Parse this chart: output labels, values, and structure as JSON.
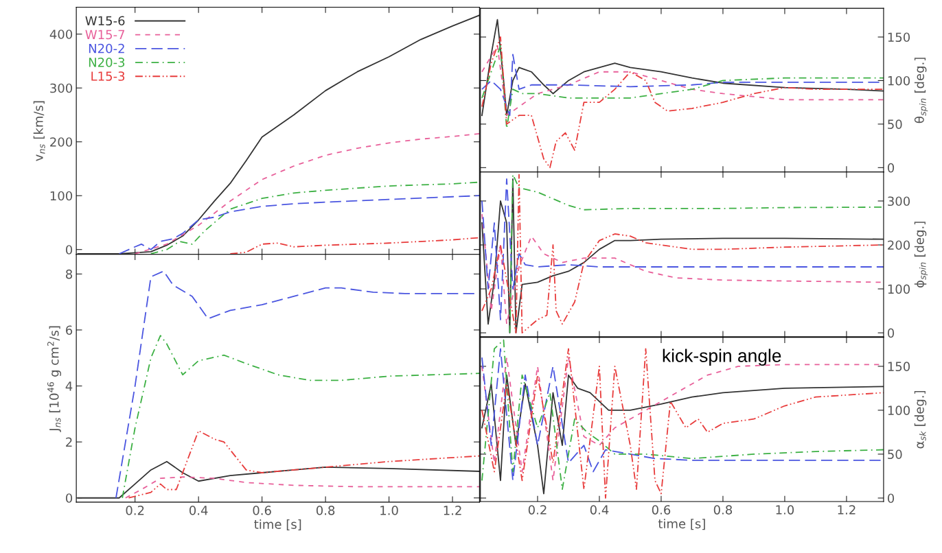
{
  "chart_data": [
    {
      "type": "line",
      "ylabel": "v$_{ns}$ [km/s]",
      "xlim": [
        0.015,
        1.285
      ],
      "xticks": [
        0.2,
        0.4,
        0.6,
        0.8,
        1.0,
        1.2
      ],
      "ylim": [
        -9,
        450
      ],
      "yticks": [
        0,
        100,
        200,
        300,
        400
      ],
      "tick_labels": "y",
      "legend": "top left",
      "series": [
        {
          "name": "W15-6",
          "color": "#333333",
          "line_style": "solid",
          "x": [
            0.02,
            0.15,
            0.2,
            0.25,
            0.3,
            0.35,
            0.4,
            0.45,
            0.5,
            0.55,
            0.6,
            0.7,
            0.8,
            0.9,
            1.0,
            1.1,
            1.2,
            1.285
          ],
          "values": [
            -8,
            -8,
            -6,
            -4,
            8,
            25,
            55,
            90,
            123,
            165,
            209,
            250,
            295,
            330,
            358,
            390,
            415,
            435
          ]
        },
        {
          "name": "W15-7",
          "color": "#e8609a",
          "line_style": "dashed",
          "x": [
            0.2,
            0.3,
            0.4,
            0.5,
            0.6,
            0.7,
            0.8,
            0.9,
            1.0,
            1.1,
            1.2,
            1.285
          ],
          "values": [
            -8,
            10,
            45,
            90,
            130,
            155,
            175,
            188,
            198,
            205,
            210,
            215
          ]
        },
        {
          "name": "N20-2",
          "color": "#4a55e0",
          "line_style": "longdash",
          "x": [
            0.15,
            0.2,
            0.22,
            0.25,
            0.28,
            0.32,
            0.35,
            0.4,
            0.45,
            0.5,
            0.6,
            0.7,
            0.8,
            1.0,
            1.2,
            1.285
          ],
          "values": [
            -8,
            5,
            10,
            0,
            15,
            20,
            30,
            55,
            60,
            70,
            80,
            85,
            88,
            93,
            98,
            100
          ]
        },
        {
          "name": "N20-3",
          "color": "#3cb043",
          "line_style": "dashdot",
          "x": [
            0.25,
            0.3,
            0.34,
            0.38,
            0.42,
            0.5,
            0.6,
            0.7,
            0.8,
            1.0,
            1.2,
            1.285
          ],
          "values": [
            -8,
            0,
            15,
            10,
            35,
            75,
            95,
            105,
            110,
            118,
            122,
            125
          ]
        },
        {
          "name": "L15-3",
          "color": "#e83c3c",
          "line_style": "dashdotdot",
          "x": [
            0.5,
            0.55,
            0.6,
            0.65,
            0.7,
            0.8,
            1.0,
            1.2,
            1.285
          ],
          "values": [
            -8,
            -5,
            10,
            12,
            5,
            8,
            12,
            18,
            22
          ]
        }
      ]
    },
    {
      "type": "line",
      "xlabel": "time [s]",
      "ylabel": "J$_{ns}$ [10$^{46}$ g cm$^{2}$/s]",
      "xlim": [
        0.015,
        1.285
      ],
      "xticks": [
        0.2,
        0.4,
        0.6,
        0.8,
        {
          "value": 1.0,
          "label": "1.0"
        },
        1.2
      ],
      "ylim": [
        -0.15,
        8.7
      ],
      "yticks": [
        0,
        2,
        4,
        6,
        8
      ],
      "series": [
        {
          "color": "#333333",
          "line_style": "solid",
          "x": [
            0.02,
            0.15,
            0.2,
            0.25,
            0.3,
            0.35,
            0.4,
            0.5,
            0.6,
            0.7,
            0.8,
            1.0,
            1.285
          ],
          "values": [
            0,
            0,
            0.5,
            1.0,
            1.3,
            0.9,
            0.6,
            0.8,
            0.9,
            1.0,
            1.1,
            1.05,
            0.95
          ]
        },
        {
          "color": "#e8609a",
          "line_style": "dashed",
          "x": [
            0.17,
            0.22,
            0.28,
            0.35,
            0.45,
            0.55,
            0.7,
            0.9,
            1.285
          ],
          "values": [
            0,
            0.3,
            0.7,
            0.75,
            0.7,
            0.55,
            0.45,
            0.4,
            0.4
          ]
        },
        {
          "color": "#4a55e0",
          "line_style": "longdash",
          "x": [
            0.14,
            0.2,
            0.25,
            0.29,
            0.32,
            0.38,
            0.43,
            0.5,
            0.6,
            0.7,
            0.8,
            0.85,
            0.95,
            1.05,
            1.285
          ],
          "values": [
            0,
            4,
            7.9,
            8.1,
            7.6,
            7.2,
            6.4,
            6.7,
            6.9,
            7.2,
            7.5,
            7.5,
            7.35,
            7.3,
            7.3
          ]
        },
        {
          "color": "#3cb043",
          "line_style": "dashdot",
          "x": [
            0.16,
            0.2,
            0.25,
            0.28,
            0.3,
            0.35,
            0.4,
            0.48,
            0.55,
            0.65,
            0.75,
            0.85,
            1.0,
            1.285
          ],
          "values": [
            0,
            2.5,
            5,
            5.8,
            5.5,
            4.4,
            4.9,
            5.1,
            4.8,
            4.4,
            4.2,
            4.2,
            4.35,
            4.45
          ]
        },
        {
          "color": "#e83c3c",
          "line_style": "dashdotdot",
          "x": [
            0.18,
            0.25,
            0.28,
            0.3,
            0.33,
            0.4,
            0.45,
            0.48,
            0.55,
            0.6,
            0.7,
            0.8,
            1.0,
            1.285
          ],
          "values": [
            0,
            0.2,
            0.5,
            0.3,
            0.3,
            2.4,
            2.1,
            2.0,
            1.0,
            0.9,
            1.0,
            1.1,
            1.3,
            1.5
          ]
        }
      ]
    },
    {
      "type": "line",
      "ylabel": "θ$_{spin}$ [deg.]",
      "xlim": [
        0.015,
        1.32
      ],
      "xticks": [
        0.2,
        0.4,
        0.6,
        0.8,
        1.0,
        1.2
      ],
      "ylim": [
        -5,
        183
      ],
      "yticks": [
        0,
        50,
        100,
        150
      ],
      "tick_labels": "y",
      "series": [
        {
          "color": "#333333",
          "line_style": "solid",
          "x": [
            0.02,
            0.05,
            0.07,
            0.09,
            0.1,
            0.12,
            0.14,
            0.18,
            0.22,
            0.25,
            0.3,
            0.35,
            0.4,
            0.45,
            0.5,
            0.6,
            0.7,
            0.8,
            1.0,
            1.2,
            1.32
          ],
          "values": [
            60,
            130,
            170,
            100,
            60,
            100,
            115,
            110,
            95,
            85,
            100,
            110,
            115,
            120,
            115,
            110,
            103,
            97,
            92,
            90,
            88
          ]
        },
        {
          "color": "#e8609a",
          "line_style": "dashed",
          "x": [
            0.02,
            0.07,
            0.1,
            0.14,
            0.2,
            0.3,
            0.4,
            0.5,
            0.6,
            0.7,
            0.8,
            1.0,
            1.32
          ],
          "values": [
            110,
            140,
            60,
            70,
            85,
            95,
            110,
            110,
            100,
            90,
            85,
            78,
            78
          ]
        },
        {
          "color": "#4a55e0",
          "line_style": "longdash",
          "x": [
            0.02,
            0.05,
            0.08,
            0.11,
            0.12,
            0.14,
            0.18,
            0.3,
            0.5,
            0.7,
            0.8,
            1.0,
            1.32
          ],
          "values": [
            90,
            100,
            90,
            60,
            130,
            90,
            95,
            95,
            93,
            95,
            98,
            98,
            98
          ]
        },
        {
          "color": "#3cb043",
          "line_style": "dashdot",
          "x": [
            0.02,
            0.06,
            0.08,
            0.1,
            0.12,
            0.15,
            0.2,
            0.3,
            0.5,
            0.7,
            0.8,
            1.0,
            1.32
          ],
          "values": [
            80,
            120,
            140,
            45,
            90,
            85,
            85,
            80,
            80,
            90,
            100,
            103,
            103
          ]
        },
        {
          "color": "#e83c3c",
          "line_style": "dashdotdot",
          "x": [
            0.02,
            0.05,
            0.08,
            0.1,
            0.14,
            0.18,
            0.22,
            0.24,
            0.26,
            0.29,
            0.32,
            0.35,
            0.4,
            0.45,
            0.5,
            0.55,
            0.58,
            0.62,
            0.7,
            0.8,
            0.9,
            1.0,
            1.1,
            1.32
          ],
          "values": [
            70,
            120,
            150,
            50,
            60,
            60,
            10,
            0,
            30,
            40,
            20,
            75,
            75,
            90,
            110,
            100,
            75,
            65,
            68,
            75,
            85,
            92,
            90,
            90
          ]
        }
      ]
    },
    {
      "type": "line",
      "ylabel": "ϕ$_{spin}$ [deg.]",
      "xlim": [
        0.015,
        1.32
      ],
      "xticks": [
        0.2,
        0.4,
        0.6,
        0.8,
        1.0,
        1.2
      ],
      "ylim": [
        -9,
        366
      ],
      "yticks": [
        0,
        100,
        200,
        300
      ],
      "tick_labels": "y",
      "series": [
        {
          "color": "#333333",
          "line_style": "solid",
          "x": [
            0.02,
            0.04,
            0.06,
            0.08,
            0.1,
            0.11,
            0.12,
            0.13,
            0.15,
            0.2,
            0.25,
            0.3,
            0.35,
            0.4,
            0.45,
            0.5,
            0.6,
            0.8,
            1.0,
            1.32
          ],
          "values": [
            250,
            20,
            120,
            300,
            250,
            0,
            350,
            0,
            110,
            115,
            130,
            140,
            160,
            190,
            210,
            210,
            213,
            215,
            215,
            213
          ]
        },
        {
          "color": "#e8609a",
          "line_style": "dashed",
          "x": [
            0.02,
            0.05,
            0.08,
            0.1,
            0.14,
            0.18,
            0.22,
            0.28,
            0.35,
            0.45,
            0.55,
            0.65,
            0.8,
            1.0,
            1.32
          ],
          "values": [
            270,
            50,
            200,
            20,
            150,
            220,
            180,
            160,
            170,
            170,
            140,
            125,
            120,
            118,
            115
          ]
        },
        {
          "color": "#4a55e0",
          "line_style": "longdash",
          "x": [
            0.02,
            0.04,
            0.06,
            0.08,
            0.1,
            0.12,
            0.14,
            0.16,
            0.2,
            0.3,
            0.4,
            0.6,
            1.32
          ],
          "values": [
            300,
            100,
            250,
            30,
            350,
            100,
            180,
            155,
            150,
            155,
            150,
            150,
            150
          ]
        },
        {
          "color": "#3cb043",
          "line_style": "dashdot",
          "x": [
            0.11,
            0.12,
            0.14,
            0.2,
            0.3,
            0.35,
            0.5,
            0.8,
            1.0,
            1.32
          ],
          "values": [
            0,
            360,
            330,
            320,
            290,
            280,
            283,
            283,
            285,
            286
          ]
        },
        {
          "color": "#e83c3c",
          "line_style": "dashdotdot",
          "x": [
            0.02,
            0.05,
            0.08,
            0.13,
            0.14,
            0.15,
            0.2,
            0.23,
            0.25,
            0.26,
            0.28,
            0.32,
            0.35,
            0.4,
            0.45,
            0.5,
            0.55,
            0.6,
            0.7,
            0.8,
            1.0,
            1.32
          ],
          "values": [
            50,
            100,
            200,
            0,
            360,
            0,
            30,
            40,
            200,
            50,
            20,
            70,
            160,
            210,
            225,
            220,
            205,
            200,
            190,
            190,
            195,
            200
          ]
        }
      ]
    },
    {
      "type": "line",
      "xlabel": "time [s]",
      "ylabel": "α$_{sk}$ [deg.]",
      "annotations": [
        "kick-spin angle"
      ],
      "xlim": [
        0.015,
        1.32
      ],
      "xticks": [
        0.2,
        0.4,
        0.6,
        0.8,
        {
          "value": 1.0,
          "label": "1.0"
        },
        1.2
      ],
      "ylim": [
        -4,
        183
      ],
      "yticks": [
        0,
        50,
        100,
        150
      ],
      "series": [
        {
          "color": "#333333",
          "line_style": "solid",
          "x": [
            0.02,
            0.05,
            0.08,
            0.1,
            0.13,
            0.16,
            0.2,
            0.22,
            0.25,
            0.28,
            0.3,
            0.33,
            0.37,
            0.4,
            0.43,
            0.5,
            0.6,
            0.7,
            0.8,
            1.0,
            1.32
          ],
          "values": [
            80,
            130,
            20,
            140,
            60,
            130,
            60,
            5,
            120,
            60,
            140,
            125,
            120,
            110,
            100,
            100,
            107,
            115,
            120,
            125,
            127
          ]
        },
        {
          "color": "#e8609a",
          "line_style": "dashed",
          "x": [
            0.02,
            0.06,
            0.1,
            0.15,
            0.2,
            0.25,
            0.3,
            0.35,
            0.4,
            0.45,
            0.55,
            0.65,
            0.75,
            0.85,
            1.0,
            1.32
          ],
          "values": [
            150,
            40,
            160,
            30,
            150,
            20,
            160,
            70,
            60,
            80,
            100,
            120,
            140,
            150,
            152,
            152
          ]
        },
        {
          "color": "#4a55e0",
          "line_style": "longdash",
          "x": [
            0.02,
            0.05,
            0.08,
            0.12,
            0.16,
            0.2,
            0.25,
            0.3,
            0.35,
            0.38,
            0.42,
            0.5,
            0.58,
            0.7,
            1.0,
            1.32
          ],
          "values": [
            160,
            60,
            170,
            20,
            140,
            60,
            150,
            40,
            60,
            30,
            55,
            50,
            45,
            43,
            43,
            43
          ]
        },
        {
          "color": "#3cb043",
          "line_style": "dashdot",
          "x": [
            0.02,
            0.06,
            0.09,
            0.12,
            0.15,
            0.2,
            0.24,
            0.28,
            0.32,
            0.36,
            0.4,
            0.45,
            0.55,
            0.7,
            0.9,
            1.1,
            1.32
          ],
          "values": [
            20,
            170,
            180,
            30,
            140,
            80,
            120,
            10,
            90,
            75,
            65,
            50,
            50,
            45,
            50,
            53,
            55
          ]
        },
        {
          "color": "#e83c3c",
          "line_style": "dashdotdot",
          "x": [
            0.02,
            0.06,
            0.1,
            0.15,
            0.2,
            0.25,
            0.3,
            0.35,
            0.4,
            0.42,
            0.45,
            0.5,
            0.52,
            0.55,
            0.58,
            0.6,
            0.63,
            0.68,
            0.72,
            0.75,
            0.8,
            0.9,
            1.0,
            1.1,
            1.32
          ],
          "values": [
            100,
            30,
            130,
            20,
            140,
            40,
            170,
            10,
            150,
            0,
            150,
            60,
            10,
            170,
            20,
            5,
            110,
            80,
            90,
            75,
            85,
            90,
            105,
            115,
            120
          ]
        }
      ]
    }
  ]
}
